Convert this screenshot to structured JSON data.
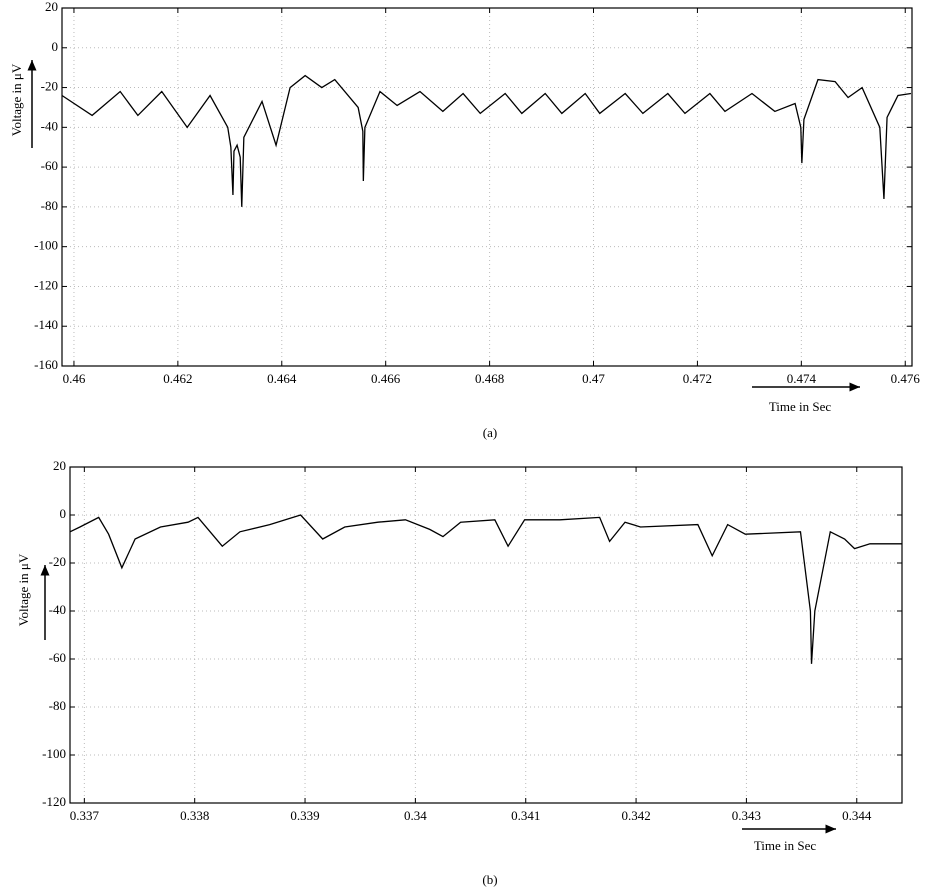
{
  "chart_data": [
    {
      "type": "line",
      "caption": "(a)",
      "xlabel": "Time in Sec",
      "ylabel": "Voltage in μV",
      "color": "#000000",
      "grid": true,
      "xlim": [
        0.45977,
        0.47613
      ],
      "ylim": [
        -160,
        20
      ],
      "xticks": [
        0.46,
        0.462,
        0.464,
        0.466,
        0.468,
        0.47,
        0.472,
        0.474,
        0.476
      ],
      "yticks": [
        -160,
        -140,
        -120,
        -100,
        -80,
        -60,
        -40,
        -20,
        0,
        20
      ],
      "x": [
        0.45977,
        0.46035,
        0.46089,
        0.46123,
        0.46169,
        0.46218,
        0.46262,
        0.46296,
        0.46302,
        0.46306,
        0.46308,
        0.46314,
        0.4632,
        0.46323,
        0.46327,
        0.46362,
        0.46389,
        0.46416,
        0.46445,
        0.46477,
        0.46502,
        0.46547,
        0.46556,
        0.46557,
        0.4656,
        0.46589,
        0.46622,
        0.46666,
        0.4671,
        0.46749,
        0.46782,
        0.4683,
        0.46862,
        0.46907,
        0.46939,
        0.46984,
        0.47012,
        0.47061,
        0.47095,
        0.47143,
        0.47176,
        0.47224,
        0.47253,
        0.47305,
        0.47349,
        0.47388,
        0.47399,
        0.47401,
        0.47405,
        0.47432,
        0.47465,
        0.4749,
        0.47517,
        0.47551,
        0.47559,
        0.47565,
        0.47586,
        0.47611
      ],
      "values": [
        -24,
        -34,
        -22,
        -34,
        -22,
        -40,
        -24,
        -40,
        -50,
        -74,
        -52,
        -49,
        -55,
        -80,
        -45,
        -27,
        -49,
        -20,
        -14,
        -20,
        -16,
        -30,
        -42,
        -67,
        -40,
        -22,
        -29,
        -22,
        -32,
        -23,
        -33,
        -23,
        -33,
        -23,
        -33,
        -23,
        -33,
        -23,
        -33,
        -23,
        -33,
        -23,
        -32,
        -23,
        -32,
        -28,
        -40,
        -58,
        -36,
        -16,
        -17,
        -25,
        -20,
        -40,
        -76,
        -35,
        -24,
        -23
      ]
    },
    {
      "type": "line",
      "caption": "(b)",
      "xlabel": "Time in Sec",
      "ylabel": "Voltage in μV",
      "color": "#000000",
      "grid": true,
      "xlim": [
        0.33687,
        0.34441
      ],
      "ylim": [
        -120,
        20
      ],
      "xticks": [
        0.337,
        0.338,
        0.339,
        0.34,
        0.341,
        0.342,
        0.343,
        0.344
      ],
      "yticks": [
        -120,
        -100,
        -80,
        -60,
        -40,
        -20,
        0,
        20
      ],
      "x": [
        0.33687,
        0.33696,
        0.33713,
        0.33722,
        0.33734,
        0.33746,
        0.33769,
        0.33794,
        0.33803,
        0.33814,
        0.33825,
        0.33841,
        0.33868,
        0.33896,
        0.33916,
        0.33936,
        0.33966,
        0.33991,
        0.34013,
        0.34025,
        0.34041,
        0.34072,
        0.34084,
        0.34099,
        0.34131,
        0.34167,
        0.34176,
        0.3419,
        0.34204,
        0.34256,
        0.34269,
        0.34283,
        0.34299,
        0.34349,
        0.34358,
        0.34359,
        0.34362,
        0.34376,
        0.34389,
        0.34398,
        0.34412,
        0.34441
      ],
      "values": [
        -7,
        -5,
        -1,
        -8,
        -22,
        -10,
        -5,
        -3,
        -1,
        -7,
        -13,
        -7,
        -4,
        0,
        -10,
        -5,
        -3,
        -2,
        -6,
        -9,
        -3,
        -2,
        -13,
        -2,
        -2,
        -1,
        -11,
        -3,
        -5,
        -4,
        -17,
        -4,
        -8,
        -7,
        -40,
        -62,
        -40,
        -7,
        -10,
        -14,
        -12,
        -12
      ]
    }
  ]
}
